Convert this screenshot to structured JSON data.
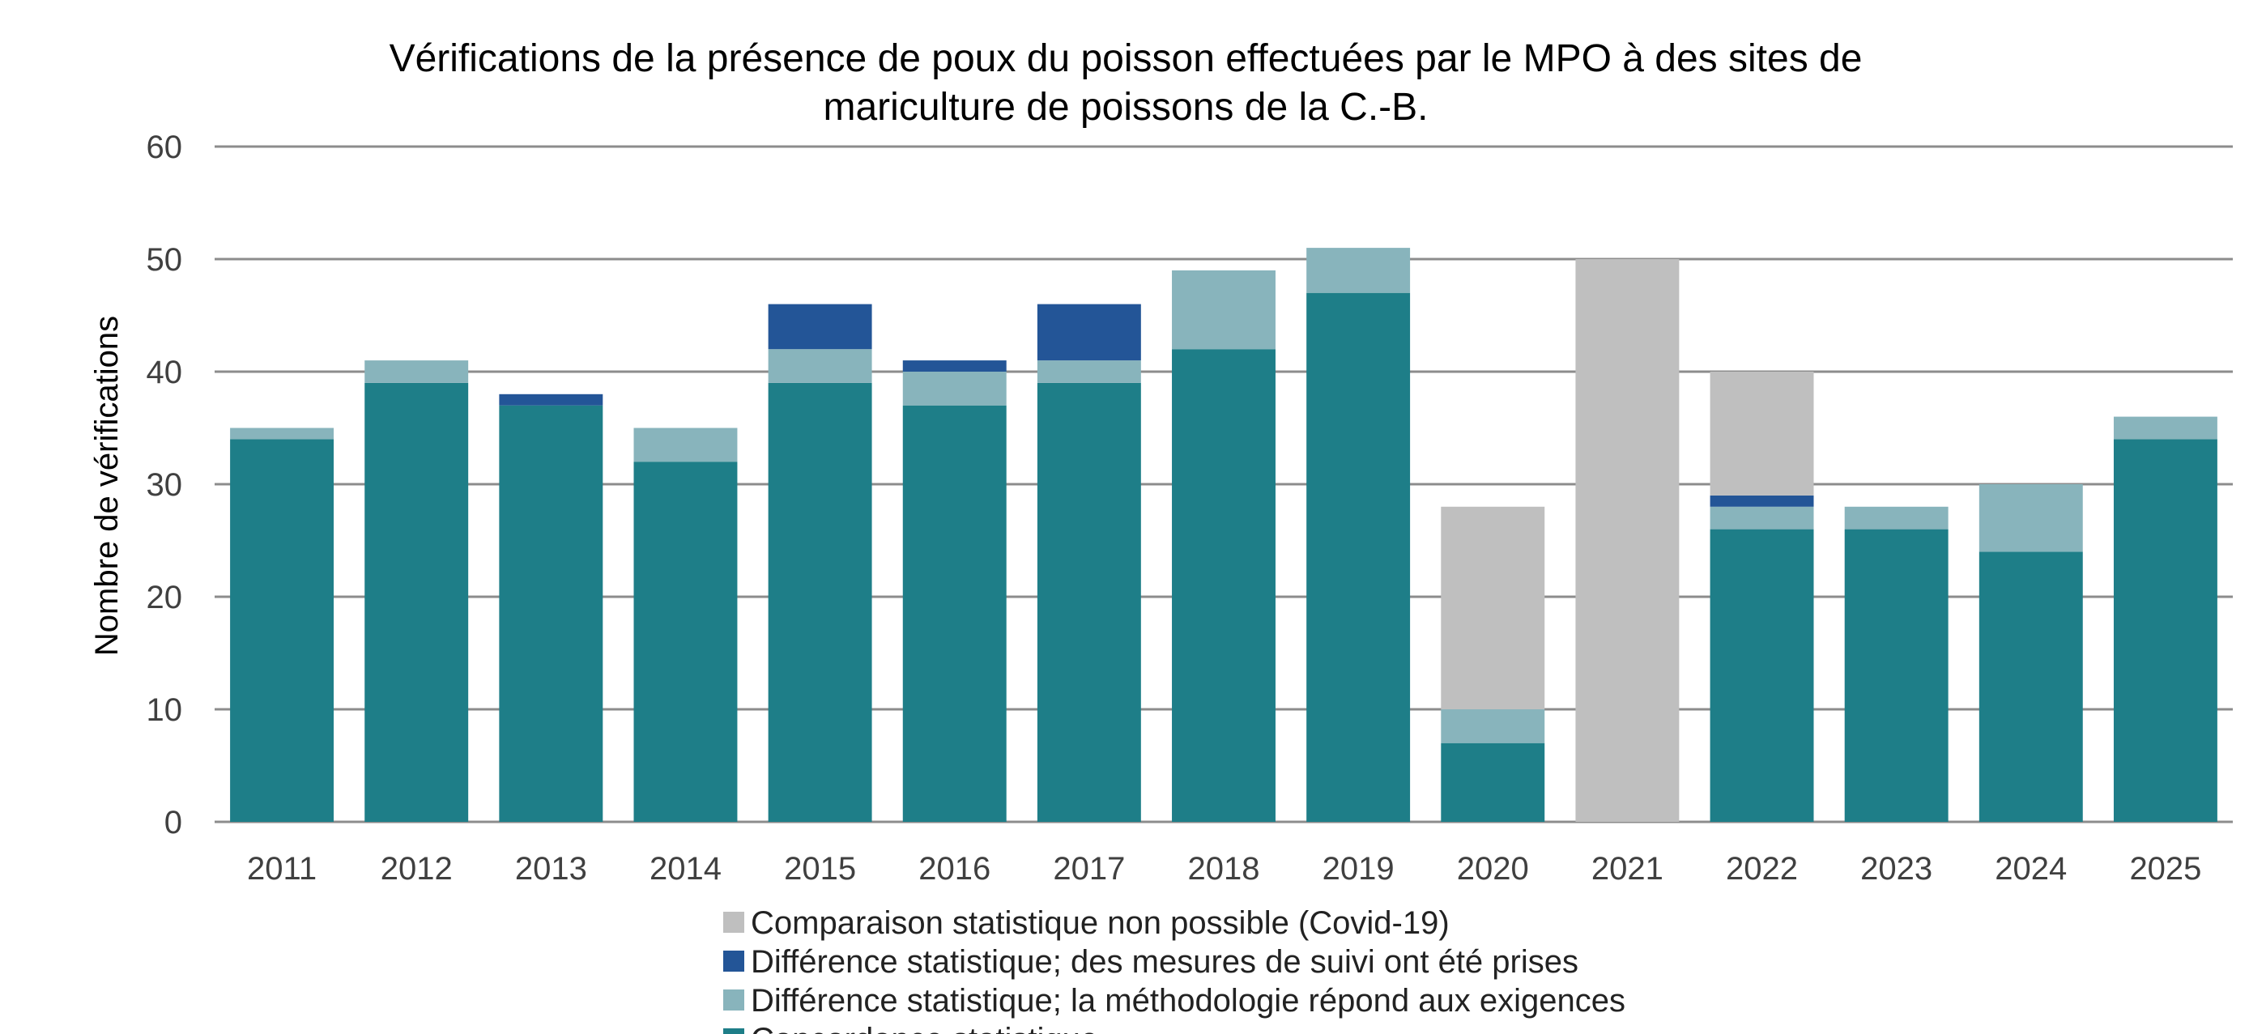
{
  "chart_data": {
    "type": "bar",
    "stacked": true,
    "title": "Vérifications de la présence de poux du poisson effectuées par le MPO à des sites de mariculture de poissons de la C.-B.",
    "title_lines": [
      "Vérifications de la présence de poux du poisson effectuées par le MPO à des sites de",
      "mariculture de poissons de la C.-B."
    ],
    "xlabel": "",
    "ylabel": "Nombre de vérifications",
    "ylim": [
      0,
      60
    ],
    "yticks": [
      0,
      10,
      20,
      30,
      40,
      50,
      60
    ],
    "grid": true,
    "legend_position": "bottom",
    "categories": [
      "2011",
      "2012",
      "2013",
      "2014",
      "2015",
      "2016",
      "2017",
      "2018",
      "2019",
      "2020",
      "2021",
      "2022",
      "2023",
      "2024",
      "2025"
    ],
    "series": [
      {
        "name": "Concordance statistique",
        "color": "#1e7e88",
        "values": [
          34,
          39,
          37,
          32,
          39,
          37,
          39,
          42,
          47,
          7,
          0,
          26,
          26,
          24,
          34
        ]
      },
      {
        "name": "Différence statistique; la méthodologie répond aux exigences",
        "color": "#88b4bc",
        "values": [
          1,
          2,
          0,
          3,
          3,
          3,
          2,
          7,
          4,
          3,
          0,
          2,
          2,
          6,
          2
        ]
      },
      {
        "name": "Différence statistique; des mesures de suivi ont été prises",
        "color": "#235597",
        "values": [
          0,
          0,
          1,
          0,
          4,
          1,
          5,
          0,
          0,
          0,
          0,
          1,
          0,
          0,
          0
        ]
      },
      {
        "name": "Comparaison statistique non possible (Covid-19)",
        "color": "#bfbfbf",
        "values": [
          0,
          0,
          0,
          0,
          0,
          0,
          0,
          0,
          0,
          18,
          50,
          11,
          0,
          0,
          0
        ]
      }
    ],
    "legend_order": [
      3,
      2,
      1,
      0
    ]
  }
}
